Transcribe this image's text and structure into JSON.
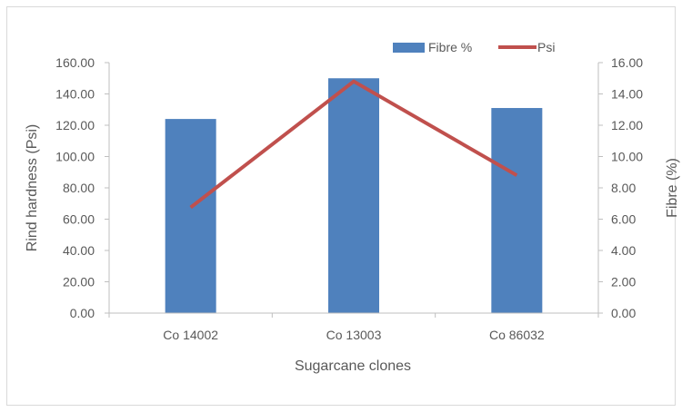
{
  "chart_data": {
    "type": "bar",
    "categories": [
      "Co 14002",
      "Co 13003",
      "Co 86032"
    ],
    "series": [
      {
        "name": "Fibre %",
        "kind": "bar",
        "axis": "right",
        "values": [
          12.4,
          15.0,
          13.1
        ],
        "color": "#4f81bd"
      },
      {
        "name": "Psi",
        "kind": "line",
        "axis": "left",
        "values": [
          67.5,
          148.0,
          88.0
        ],
        "color": "#c0504d"
      }
    ],
    "xlabel": "Sugarcane clones",
    "ylabel": "Rind hardness (Psi)",
    "y2label": "Fibre (%)",
    "ylim": [
      0,
      160
    ],
    "y2lim": [
      0,
      16
    ],
    "yticks": [
      "0.00",
      "20.00",
      "40.00",
      "60.00",
      "80.00",
      "100.00",
      "120.00",
      "140.00",
      "160.00"
    ],
    "y2ticks": [
      "0.00",
      "2.00",
      "4.00",
      "6.00",
      "8.00",
      "10.00",
      "12.00",
      "14.00",
      "16.00"
    ],
    "grid": false,
    "legend": "top-right"
  }
}
